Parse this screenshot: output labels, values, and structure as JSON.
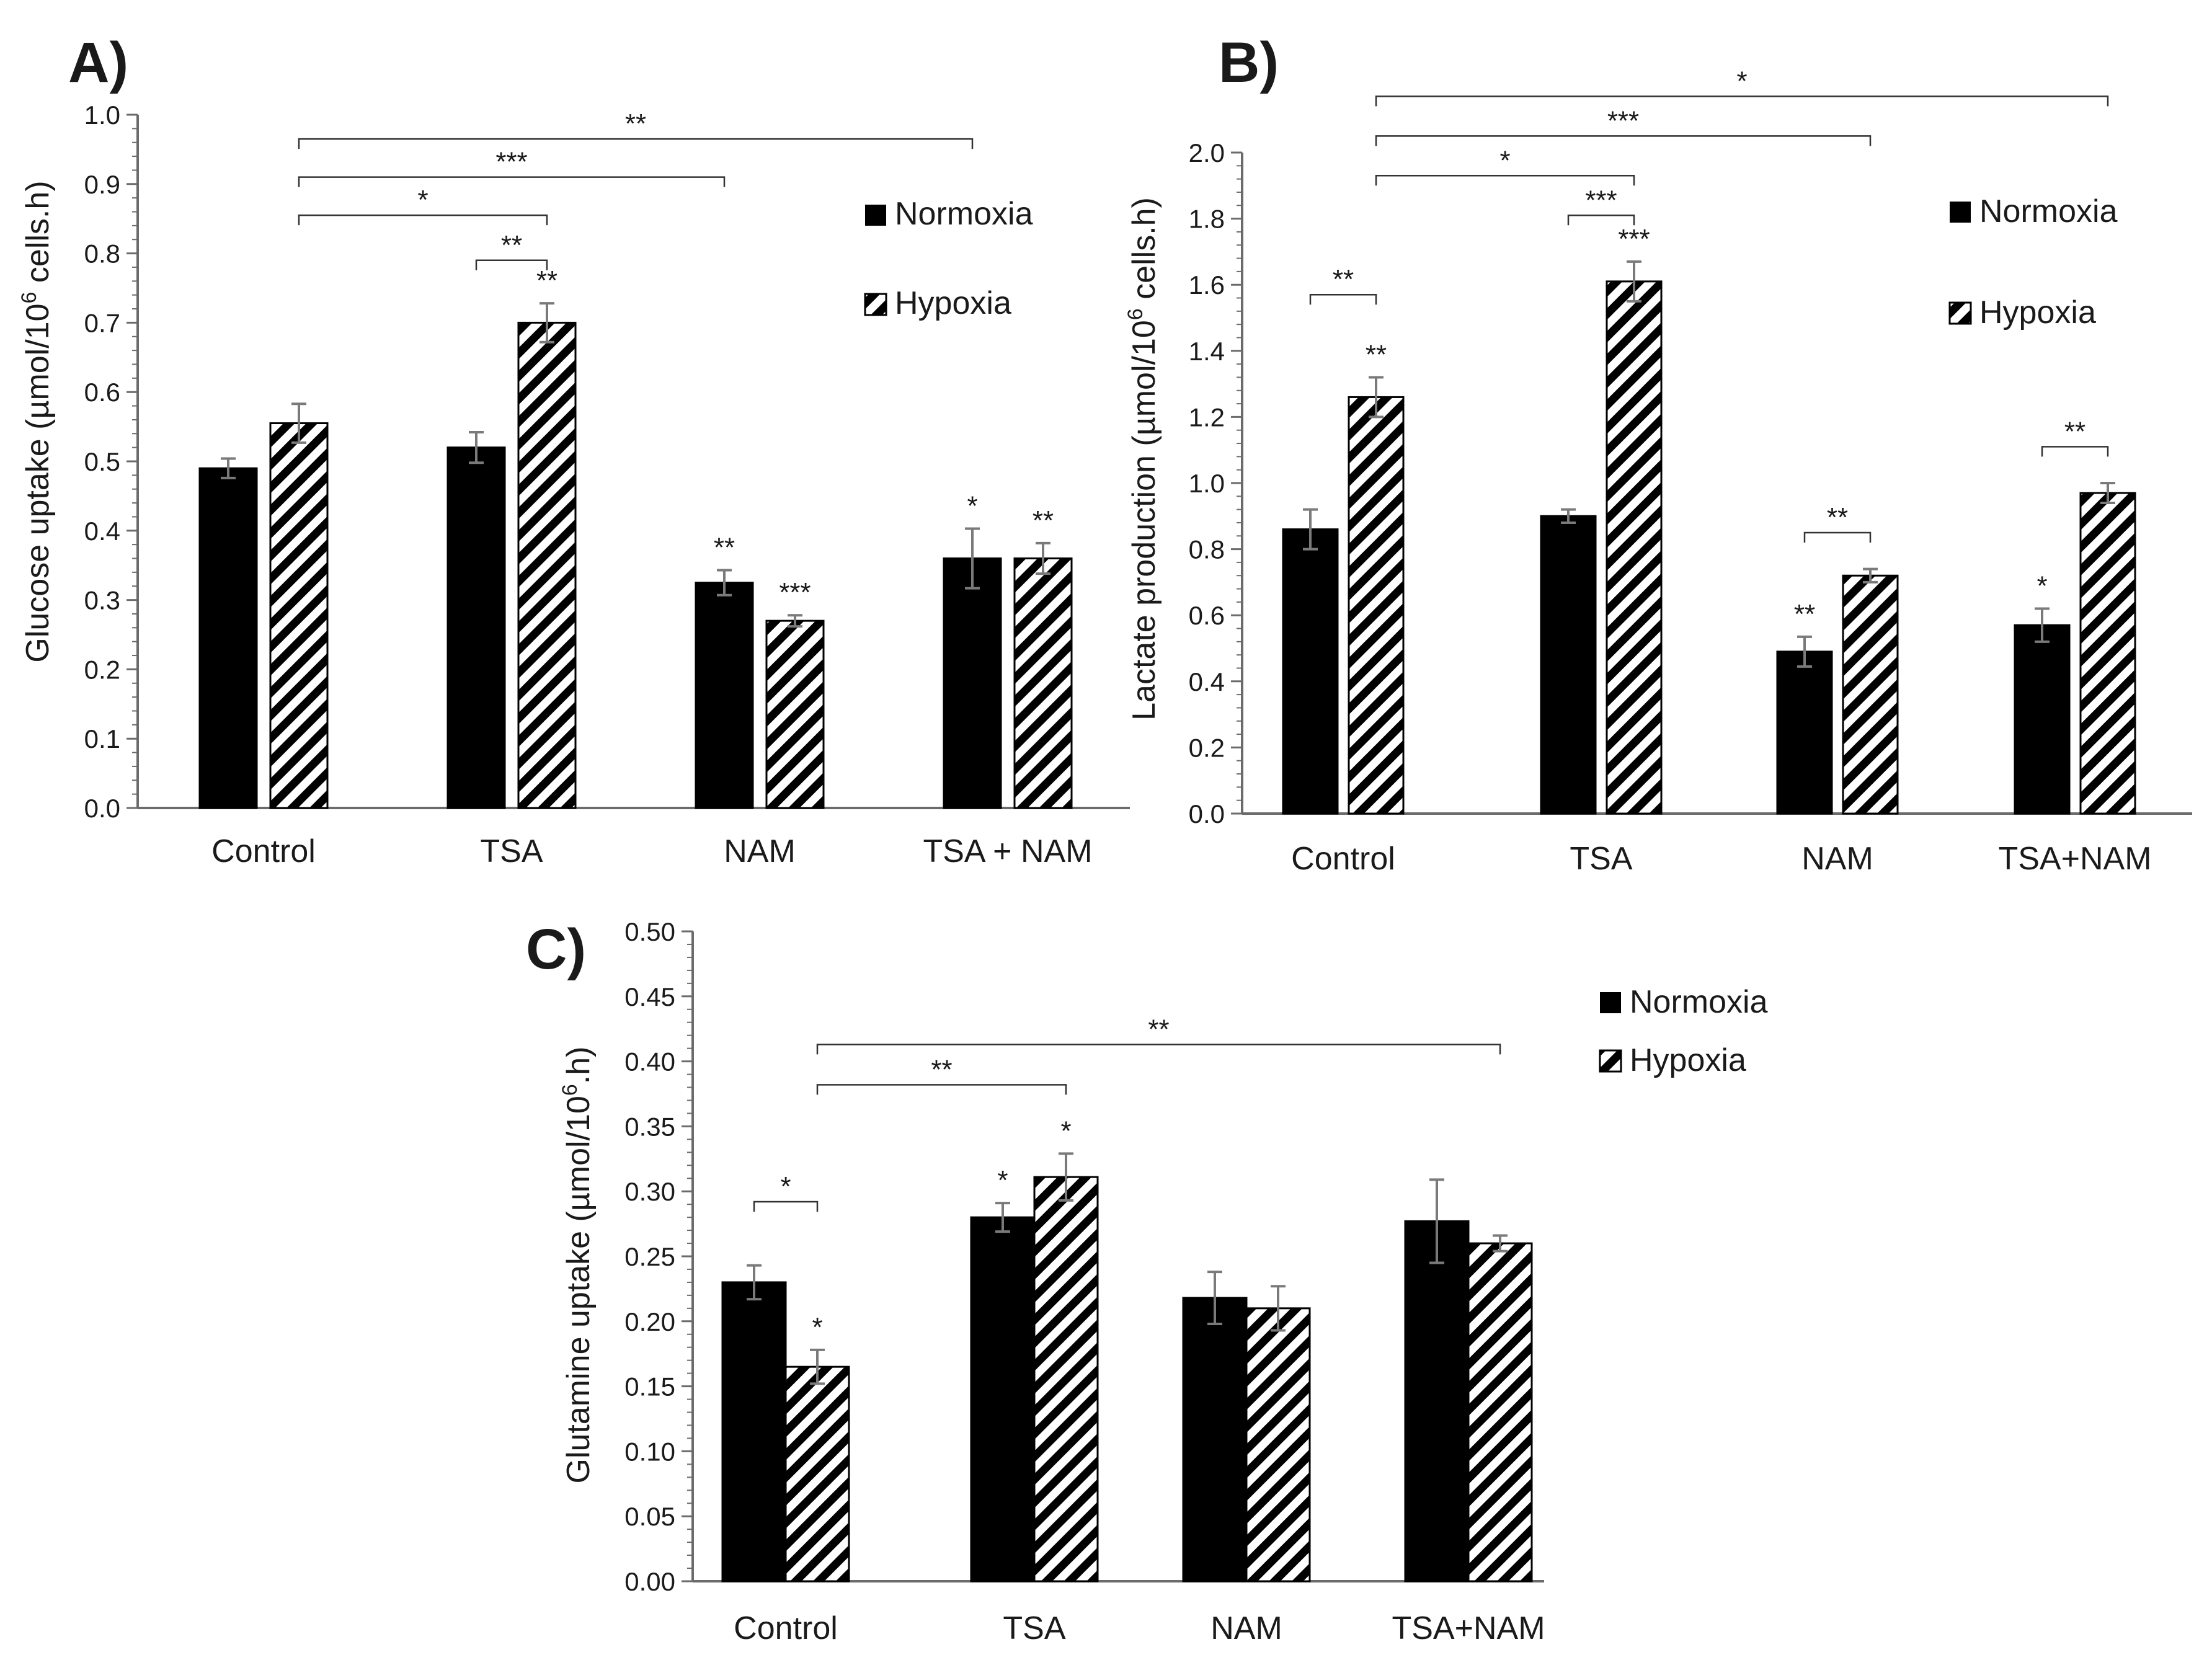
{
  "colors": {
    "normoxia": "#000000",
    "axis": "#6b6b6b",
    "error": "#7a7a7a",
    "hatch": "#000000",
    "background": "#ffffff"
  },
  "chart_data": [
    {
      "id": "A",
      "panel_label": "A)",
      "type": "bar",
      "ylabel_main": "Glucose uptake (µmol/10",
      "ylabel_sup": "6",
      "ylabel_tail": " cells.h)",
      "ylim": [
        0,
        1.0
      ],
      "yticks": [
        0.0,
        0.1,
        0.2,
        0.3,
        0.4,
        0.5,
        0.6,
        0.7,
        0.8,
        0.9,
        1.0
      ],
      "ytick_labels": [
        "0.0",
        "0.1",
        "0.2",
        "0.3",
        "0.4",
        "0.5",
        "0.6",
        "0.7",
        "0.8",
        "0.9",
        "1.0"
      ],
      "categories": [
        "Control",
        "TSA",
        "NAM",
        "TSA + NAM"
      ],
      "legend": [
        "Normoxia",
        "Hypoxia"
      ],
      "series": [
        {
          "name": "Normoxia",
          "values": [
            0.49,
            0.52,
            0.325,
            0.36
          ],
          "errors": [
            0.014,
            0.022,
            0.018,
            0.043
          ],
          "stars": [
            "",
            "",
            "**",
            "*"
          ]
        },
        {
          "name": "Hypoxia",
          "values": [
            0.555,
            0.7,
            0.27,
            0.36
          ],
          "errors": [
            0.028,
            0.028,
            0.008,
            0.022
          ],
          "stars": [
            "",
            "**",
            "***",
            "**"
          ]
        }
      ],
      "brackets": [
        {
          "from": [
            0,
            1
          ],
          "to": [
            1,
            1
          ],
          "y": 0.855,
          "label": "*"
        },
        {
          "from": [
            1,
            0
          ],
          "to": [
            1,
            1
          ],
          "y": 0.79,
          "label": "**"
        },
        {
          "from": [
            0,
            1
          ],
          "to": [
            2,
            0
          ],
          "y": 0.91,
          "label": "***"
        },
        {
          "from": [
            0,
            1
          ],
          "to": [
            3,
            0
          ],
          "y": 0.965,
          "label": "**"
        }
      ]
    },
    {
      "id": "B",
      "panel_label": "B)",
      "type": "bar",
      "ylabel_main": "Lactate production (µmol/10",
      "ylabel_sup": "6",
      "ylabel_tail": " cells.h)",
      "ylim": [
        0,
        2.0
      ],
      "yticks": [
        0.0,
        0.2,
        0.4,
        0.6,
        0.8,
        1.0,
        1.2,
        1.4,
        1.6,
        1.8,
        2.0
      ],
      "ytick_labels": [
        "0.0",
        "0.2",
        "0.4",
        "0.6",
        "0.8",
        "1.0",
        "1.2",
        "1.4",
        "1.6",
        "1.8",
        "2.0"
      ],
      "categories": [
        "Control",
        "TSA",
        "NAM",
        "TSA+NAM"
      ],
      "legend": [
        "Normoxia",
        "Hypoxia"
      ],
      "series": [
        {
          "name": "Normoxia",
          "values": [
            0.86,
            0.9,
            0.49,
            0.57
          ],
          "errors": [
            0.06,
            0.02,
            0.045,
            0.05
          ],
          "stars": [
            "",
            "",
            "**",
            "*"
          ]
        },
        {
          "name": "Hypoxia",
          "values": [
            1.26,
            1.61,
            0.72,
            0.97
          ],
          "errors": [
            0.06,
            0.06,
            0.02,
            0.03
          ],
          "stars": [
            "**",
            "***",
            "",
            ""
          ]
        }
      ],
      "brackets": [
        {
          "from": [
            0,
            0
          ],
          "to": [
            0,
            1
          ],
          "y": 1.57,
          "label": "**"
        },
        {
          "from": [
            1,
            0
          ],
          "to": [
            1,
            1
          ],
          "y": 1.81,
          "label": "***"
        },
        {
          "from": [
            2,
            0
          ],
          "to": [
            2,
            1
          ],
          "y": 0.85,
          "label": "**"
        },
        {
          "from": [
            3,
            0
          ],
          "to": [
            3,
            1
          ],
          "y": 1.11,
          "label": "**"
        },
        {
          "from": [
            0,
            1
          ],
          "to": [
            1,
            1
          ],
          "y": 1.93,
          "label": "*"
        },
        {
          "from": [
            0,
            1
          ],
          "to": [
            2,
            1
          ],
          "y": 2.05,
          "label": "***"
        },
        {
          "from": [
            0,
            1
          ],
          "to": [
            3,
            1
          ],
          "y": 2.17,
          "label": "*"
        }
      ]
    },
    {
      "id": "C",
      "panel_label": "C)",
      "type": "bar",
      "ylabel_main": "Glutamine uptake (µmol/10",
      "ylabel_sup": "6",
      "ylabel_tail": ".h)",
      "ylim": [
        0,
        0.5
      ],
      "yticks": [
        0.0,
        0.05,
        0.1,
        0.15,
        0.2,
        0.25,
        0.3,
        0.35,
        0.4,
        0.45,
        0.5
      ],
      "ytick_labels": [
        "0.00",
        "0.05",
        "0.10",
        "0.15",
        "0.20",
        "0.25",
        "0.30",
        "0.35",
        "0.40",
        "0.45",
        "0.50"
      ],
      "categories": [
        "Control",
        "TSA",
        "NAM",
        "TSA+NAM"
      ],
      "legend": [
        "Normoxia",
        "Hypoxia"
      ],
      "series": [
        {
          "name": "Normoxia",
          "values": [
            0.23,
            0.28,
            0.218,
            0.277
          ],
          "errors": [
            0.013,
            0.011,
            0.02,
            0.032
          ],
          "stars": [
            "",
            "*",
            "",
            ""
          ]
        },
        {
          "name": "Hypoxia",
          "values": [
            0.165,
            0.311,
            0.21,
            0.26
          ],
          "errors": [
            0.013,
            0.018,
            0.017,
            0.006
          ],
          "stars": [
            "*",
            "*",
            "",
            ""
          ]
        }
      ],
      "brackets": [
        {
          "from": [
            0,
            0
          ],
          "to": [
            0,
            1
          ],
          "y": 0.292,
          "label": "*"
        },
        {
          "from": [
            0,
            1
          ],
          "to": [
            1,
            1
          ],
          "y": 0.382,
          "label": "**"
        },
        {
          "from": [
            0,
            1
          ],
          "to": [
            3,
            1
          ],
          "y": 0.413,
          "label": "**"
        }
      ]
    }
  ]
}
